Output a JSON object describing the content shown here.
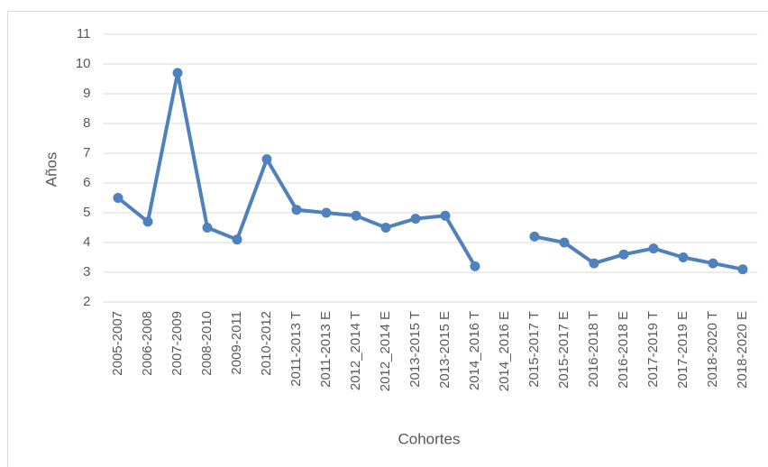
{
  "chart_data": {
    "type": "line",
    "x_label": "Cohortes",
    "y_label": "Años",
    "categories": [
      "2005-2007",
      "2006-2008",
      "2007-2009",
      "2008-2010",
      "2009-2011",
      "2010-2012",
      "2011-2013 T",
      "2011-2013 E",
      "2012_2014 T",
      "2012_2014 E",
      "2013-2015 T",
      "2013-2015 E",
      "2014_2016 T",
      "2014_2016 E",
      "2015-2017 T",
      "2015-2017 E",
      "2016-2018 T",
      "2016-2018 E",
      "2017-2019 T",
      "2017-2019 E",
      "2018-2020 T",
      "2018-2020 E"
    ],
    "series": [
      {
        "name": "Años",
        "color": "#4f81bd",
        "values": [
          5.5,
          4.7,
          9.7,
          4.5,
          4.1,
          6.8,
          5.1,
          5.0,
          4.9,
          4.5,
          4.8,
          4.9,
          3.2,
          null,
          4.2,
          4.0,
          3.3,
          3.6,
          3.8,
          3.5,
          3.3,
          3.1
        ]
      }
    ],
    "ylim": [
      2,
      11
    ],
    "yticks": [
      2,
      3,
      4,
      5,
      6,
      7,
      8,
      9,
      10,
      11
    ],
    "grid": true
  }
}
